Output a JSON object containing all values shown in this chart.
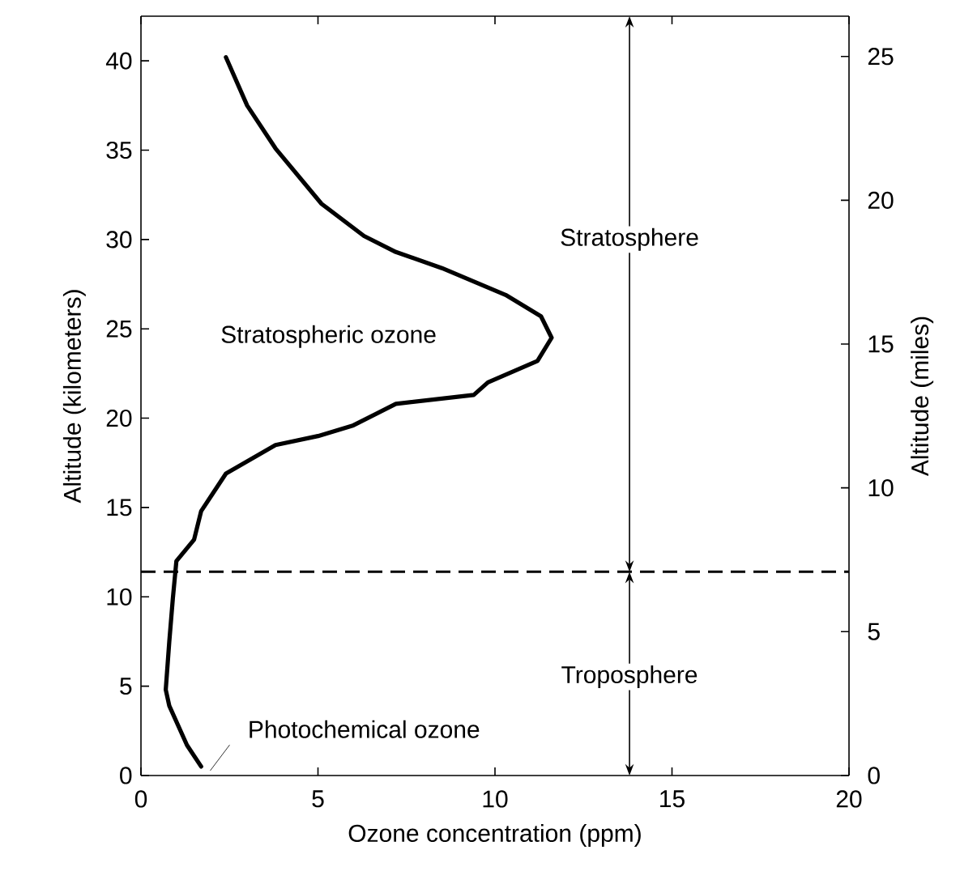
{
  "chart_data": {
    "type": "line",
    "xlabel": "Ozone concentration (ppm)",
    "ylabel": "Altitude (kilometers)",
    "y2label": "Altitude (miles)",
    "xlim": [
      0,
      20
    ],
    "xticks": [
      0,
      5,
      10,
      15,
      20
    ],
    "ylim": [
      0,
      42.5
    ],
    "yticks": [
      0,
      5,
      10,
      15,
      20,
      25,
      30,
      35,
      40
    ],
    "y2lim": [
      0,
      26.4
    ],
    "y2ticks": [
      0,
      5,
      10,
      15,
      20,
      25
    ],
    "series": [
      {
        "color": "#000000",
        "x": [
          1.7,
          1.3,
          0.8,
          0.7,
          0.8,
          0.9,
          1.0,
          1.5,
          1.7,
          2.4,
          3.8,
          5.0,
          6.0,
          7.2,
          9.4,
          9.8,
          11.2,
          11.6,
          11.3,
          10.3,
          8.5,
          7.2,
          6.3,
          5.1,
          3.8,
          3.0,
          2.4
        ],
        "values": [
          0.5,
          1.7,
          3.9,
          4.8,
          7.5,
          9.9,
          12.0,
          13.2,
          14.8,
          16.9,
          18.5,
          19.0,
          19.6,
          20.8,
          21.3,
          22.0,
          23.2,
          24.5,
          25.7,
          26.9,
          28.4,
          29.3,
          30.2,
          32.0,
          35.1,
          37.5,
          40.2
        ]
      }
    ],
    "ref_lines": [
      {
        "axis": "y",
        "value": 11.4,
        "color": "#000000",
        "line_style": "dashed"
      }
    ],
    "annotations": [
      "Stratospheric ozone",
      {
        "text": "Stratosphere",
        "x": 13.8,
        "y": 11.4
      },
      {
        "text": "Troposphere",
        "x": 13.8,
        "y": 11.4
      },
      "Photochemical ozone"
    ]
  }
}
